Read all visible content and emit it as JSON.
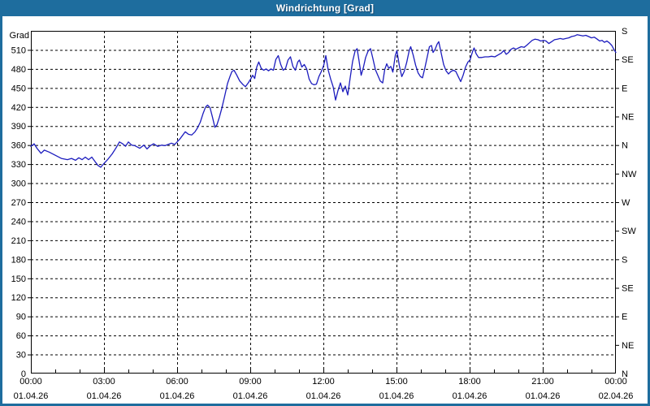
{
  "window": {
    "title": "Windrichtung [Grad]"
  },
  "colors": {
    "titlebar_bg": "#1e6d9e",
    "frame": "#1e6d9e",
    "plot_bg": "#ffffff",
    "grid": "#000000",
    "axis": "#000000",
    "line": "#1c1cbe",
    "title_text": "#ffffff"
  },
  "chart_data": {
    "type": "line",
    "title": "Windrichtung [Grad]",
    "y_left_unit": "Grad",
    "ylim": [
      0,
      540
    ],
    "xlim_minutes": [
      0,
      1440
    ],
    "grid": "dashed",
    "legend": "none",
    "y_left_ticks": [
      0,
      30,
      60,
      90,
      120,
      150,
      180,
      210,
      240,
      270,
      300,
      330,
      360,
      390,
      420,
      450,
      480,
      510
    ],
    "y_right_ticks": [
      {
        "value": 0,
        "label": "N"
      },
      {
        "value": 45,
        "label": "NE"
      },
      {
        "value": 90,
        "label": "E"
      },
      {
        "value": 135,
        "label": "SE"
      },
      {
        "value": 180,
        "label": "S"
      },
      {
        "value": 225,
        "label": "SW"
      },
      {
        "value": 270,
        "label": "W"
      },
      {
        "value": 315,
        "label": "NW"
      },
      {
        "value": 360,
        "label": "N"
      },
      {
        "value": 405,
        "label": "NE"
      },
      {
        "value": 450,
        "label": "E"
      },
      {
        "value": 495,
        "label": "SE"
      },
      {
        "value": 540,
        "label": "S"
      }
    ],
    "x_ticks": [
      {
        "time": "00:00",
        "date": "01.04.26",
        "minutes": 0
      },
      {
        "time": "03:00",
        "date": "01.04.26",
        "minutes": 180
      },
      {
        "time": "06:00",
        "date": "01.04.26",
        "minutes": 360
      },
      {
        "time": "09:00",
        "date": "01.04.26",
        "minutes": 540
      },
      {
        "time": "12:00",
        "date": "01.04.26",
        "minutes": 720
      },
      {
        "time": "15:00",
        "date": "01.04.26",
        "minutes": 900
      },
      {
        "time": "18:00",
        "date": "01.04.26",
        "minutes": 1080
      },
      {
        "time": "21:00",
        "date": "01.04.26",
        "minutes": 1260
      },
      {
        "time": "00:00",
        "date": "02.04.26",
        "minutes": 1440
      }
    ],
    "x_minor_tick_minutes": 60,
    "series": [
      {
        "name": "Windrichtung",
        "color": "#1c1cbe",
        "points": [
          [
            0,
            358
          ],
          [
            8,
            362
          ],
          [
            15,
            355
          ],
          [
            25,
            347
          ],
          [
            33,
            352
          ],
          [
            45,
            349
          ],
          [
            60,
            344
          ],
          [
            75,
            339
          ],
          [
            90,
            337
          ],
          [
            100,
            339
          ],
          [
            110,
            336
          ],
          [
            118,
            340
          ],
          [
            126,
            337
          ],
          [
            134,
            341
          ],
          [
            142,
            337
          ],
          [
            150,
            341
          ],
          [
            158,
            334
          ],
          [
            165,
            328
          ],
          [
            172,
            325
          ],
          [
            180,
            331
          ],
          [
            190,
            338
          ],
          [
            200,
            346
          ],
          [
            210,
            356
          ],
          [
            218,
            365
          ],
          [
            226,
            362
          ],
          [
            233,
            358
          ],
          [
            240,
            365
          ],
          [
            248,
            360
          ],
          [
            256,
            359
          ],
          [
            268,
            355
          ],
          [
            278,
            360
          ],
          [
            286,
            354
          ],
          [
            294,
            359
          ],
          [
            302,
            362
          ],
          [
            312,
            358
          ],
          [
            322,
            360
          ],
          [
            330,
            359
          ],
          [
            338,
            361
          ],
          [
            346,
            363
          ],
          [
            354,
            361
          ],
          [
            360,
            365
          ],
          [
            366,
            369
          ],
          [
            372,
            374
          ],
          [
            380,
            381
          ],
          [
            388,
            377
          ],
          [
            396,
            376
          ],
          [
            404,
            381
          ],
          [
            410,
            387
          ],
          [
            417,
            396
          ],
          [
            424,
            410
          ],
          [
            430,
            420
          ],
          [
            435,
            423
          ],
          [
            441,
            419
          ],
          [
            447,
            404
          ],
          [
            453,
            388
          ],
          [
            458,
            392
          ],
          [
            464,
            404
          ],
          [
            470,
            418
          ],
          [
            477,
            437
          ],
          [
            484,
            457
          ],
          [
            490,
            468
          ],
          [
            495,
            476
          ],
          [
            500,
            478
          ],
          [
            507,
            470
          ],
          [
            514,
            461
          ],
          [
            521,
            456
          ],
          [
            528,
            452
          ],
          [
            535,
            458
          ],
          [
            541,
            464
          ],
          [
            546,
            470
          ],
          [
            551,
            465
          ],
          [
            556,
            483
          ],
          [
            561,
            491
          ],
          [
            567,
            481
          ],
          [
            573,
            478
          ],
          [
            579,
            480
          ],
          [
            585,
            477
          ],
          [
            591,
            480
          ],
          [
            597,
            478
          ],
          [
            603,
            495
          ],
          [
            609,
            501
          ],
          [
            615,
            487
          ],
          [
            621,
            478
          ],
          [
            627,
            481
          ],
          [
            633,
            494
          ],
          [
            639,
            499
          ],
          [
            645,
            484
          ],
          [
            651,
            478
          ],
          [
            657,
            491
          ],
          [
            661,
            494
          ],
          [
            667,
            483
          ],
          [
            673,
            487
          ],
          [
            679,
            480
          ],
          [
            685,
            464
          ],
          [
            691,
            457
          ],
          [
            697,
            455
          ],
          [
            703,
            456
          ],
          [
            709,
            468
          ],
          [
            715,
            476
          ],
          [
            721,
            486
          ],
          [
            726,
            501
          ],
          [
            732,
            478
          ],
          [
            738,
            464
          ],
          [
            744,
            452
          ],
          [
            750,
            431
          ],
          [
            756,
            446
          ],
          [
            762,
            458
          ],
          [
            768,
            444
          ],
          [
            774,
            453
          ],
          [
            780,
            439
          ],
          [
            786,
            466
          ],
          [
            792,
            492
          ],
          [
            798,
            508
          ],
          [
            803,
            512
          ],
          [
            808,
            492
          ],
          [
            813,
            470
          ],
          [
            818,
            481
          ],
          [
            824,
            498
          ],
          [
            830,
            508
          ],
          [
            836,
            512
          ],
          [
            842,
            496
          ],
          [
            848,
            479
          ],
          [
            854,
            470
          ],
          [
            860,
            461
          ],
          [
            866,
            458
          ],
          [
            871,
            479
          ],
          [
            876,
            488
          ],
          [
            881,
            481
          ],
          [
            886,
            484
          ],
          [
            891,
            475
          ],
          [
            897,
            501
          ],
          [
            901,
            509
          ],
          [
            907,
            485
          ],
          [
            913,
            468
          ],
          [
            919,
            476
          ],
          [
            925,
            490
          ],
          [
            931,
            508
          ],
          [
            935,
            515
          ],
          [
            941,
            502
          ],
          [
            947,
            486
          ],
          [
            953,
            474
          ],
          [
            959,
            468
          ],
          [
            964,
            466
          ],
          [
            970,
            482
          ],
          [
            976,
            500
          ],
          [
            981,
            515
          ],
          [
            986,
            517
          ],
          [
            990,
            506
          ],
          [
            995,
            511
          ],
          [
            1000,
            519
          ],
          [
            1004,
            523
          ],
          [
            1010,
            505
          ],
          [
            1016,
            487
          ],
          [
            1022,
            477
          ],
          [
            1028,
            472
          ],
          [
            1034,
            476
          ],
          [
            1040,
            478
          ],
          [
            1046,
            476
          ],
          [
            1052,
            468
          ],
          [
            1058,
            460
          ],
          [
            1064,
            470
          ],
          [
            1070,
            483
          ],
          [
            1076,
            491
          ],
          [
            1081,
            494
          ],
          [
            1087,
            507
          ],
          [
            1091,
            513
          ],
          [
            1096,
            504
          ],
          [
            1102,
            498
          ],
          [
            1110,
            498
          ],
          [
            1118,
            499
          ],
          [
            1126,
            499
          ],
          [
            1134,
            500
          ],
          [
            1142,
            499
          ],
          [
            1150,
            502
          ],
          [
            1158,
            505
          ],
          [
            1164,
            509
          ],
          [
            1170,
            503
          ],
          [
            1176,
            506
          ],
          [
            1182,
            511
          ],
          [
            1188,
            513
          ],
          [
            1194,
            511
          ],
          [
            1200,
            513
          ],
          [
            1207,
            515
          ],
          [
            1214,
            514
          ],
          [
            1220,
            517
          ],
          [
            1227,
            521
          ],
          [
            1234,
            525
          ],
          [
            1241,
            527
          ],
          [
            1248,
            526
          ],
          [
            1255,
            524
          ],
          [
            1262,
            525
          ],
          [
            1268,
            524
          ],
          [
            1275,
            520
          ],
          [
            1282,
            523
          ],
          [
            1289,
            526
          ],
          [
            1296,
            527
          ],
          [
            1303,
            528
          ],
          [
            1310,
            527
          ],
          [
            1317,
            528
          ],
          [
            1324,
            529
          ],
          [
            1331,
            531
          ],
          [
            1338,
            532
          ],
          [
            1345,
            534
          ],
          [
            1352,
            533
          ],
          [
            1359,
            532
          ],
          [
            1366,
            533
          ],
          [
            1373,
            531
          ],
          [
            1380,
            529
          ],
          [
            1387,
            530
          ],
          [
            1394,
            527
          ],
          [
            1400,
            524
          ],
          [
            1406,
            525
          ],
          [
            1412,
            522
          ],
          [
            1418,
            524
          ],
          [
            1424,
            521
          ],
          [
            1430,
            517
          ],
          [
            1435,
            511
          ],
          [
            1440,
            506
          ]
        ]
      }
    ]
  }
}
